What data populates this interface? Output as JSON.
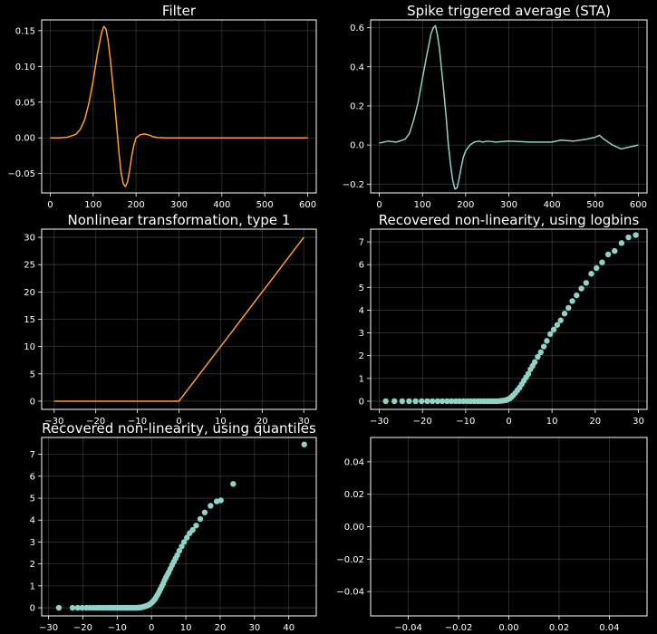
{
  "chart_data": [
    {
      "id": "filter",
      "type": "line",
      "title": "Filter",
      "color": "#ff9f25",
      "xlim": [
        -20,
        620
      ],
      "ylim": [
        -0.077,
        0.165
      ],
      "xticks": [
        0,
        100,
        200,
        300,
        400,
        500,
        600
      ],
      "yticks": [
        -0.05,
        0.0,
        0.05,
        0.1,
        0.15
      ],
      "ytick_labels": [
        "−0.05",
        "0.00",
        "0.05",
        "0.10",
        "0.15"
      ],
      "grid": true,
      "series": [
        {
          "x": [
            0,
            20,
            40,
            60,
            70,
            80,
            90,
            100,
            110,
            120,
            125,
            130,
            135,
            140,
            150,
            155,
            160,
            165,
            170,
            175,
            180,
            185,
            190,
            195,
            200,
            210,
            220,
            230,
            240,
            250,
            270,
            300,
            350,
            400,
            450,
            500,
            550,
            600
          ],
          "y": [
            0,
            0,
            0.001,
            0.005,
            0.012,
            0.025,
            0.048,
            0.08,
            0.118,
            0.148,
            0.156,
            0.152,
            0.135,
            0.11,
            0.05,
            0.015,
            -0.02,
            -0.048,
            -0.064,
            -0.068,
            -0.062,
            -0.045,
            -0.025,
            -0.01,
            0.0,
            0.0045,
            0.0055,
            0.004,
            0.0015,
            0.0005,
            0,
            0,
            0,
            0,
            0,
            0,
            0,
            0
          ]
        }
      ]
    },
    {
      "id": "sta",
      "type": "line",
      "title": "Spike triggered average (STA)",
      "color": "#8dd3c7",
      "xlim": [
        -20,
        620
      ],
      "ylim": [
        -0.245,
        0.64
      ],
      "xticks": [
        0,
        100,
        200,
        300,
        400,
        500,
        600
      ],
      "yticks": [
        -0.2,
        0.0,
        0.2,
        0.4,
        0.6
      ],
      "ytick_labels": [
        "−0.2",
        "0.0",
        "0.2",
        "0.4",
        "0.6"
      ],
      "grid": true,
      "series": [
        {
          "x": [
            0,
            20,
            40,
            60,
            70,
            80,
            90,
            100,
            110,
            120,
            125,
            130,
            135,
            140,
            150,
            155,
            160,
            165,
            170,
            175,
            180,
            185,
            190,
            195,
            200,
            210,
            220,
            230,
            240,
            250,
            270,
            300,
            350,
            400,
            420,
            450,
            480,
            500,
            510,
            520,
            540,
            560,
            580,
            600
          ],
          "y": [
            0.01,
            0.02,
            0.015,
            0.03,
            0.06,
            0.13,
            0.22,
            0.34,
            0.46,
            0.57,
            0.6,
            0.61,
            0.56,
            0.48,
            0.26,
            0.14,
            0.0,
            -0.1,
            -0.18,
            -0.225,
            -0.22,
            -0.17,
            -0.11,
            -0.06,
            -0.03,
            0.0,
            0.015,
            0.02,
            0.015,
            0.02,
            0.015,
            0.02,
            0.015,
            0.015,
            0.025,
            0.02,
            0.03,
            0.04,
            0.05,
            0.03,
            0.0,
            -0.02,
            -0.01,
            0.0
          ]
        }
      ]
    },
    {
      "id": "nonlinear",
      "type": "line",
      "title": "Nonlinear transformation, type 1",
      "color": "#ff9f25",
      "xlim": [
        -33,
        33
      ],
      "ylim": [
        -1.5,
        31.5
      ],
      "xticks": [
        -30,
        -20,
        -10,
        0,
        10,
        20,
        30
      ],
      "xtick_labels": [
        "−30",
        "−20",
        "−10",
        "0",
        "10",
        "20",
        "30"
      ],
      "yticks": [
        0,
        5,
        10,
        15,
        20,
        25,
        30
      ],
      "grid": true,
      "series": [
        {
          "x": [
            -30,
            0,
            30
          ],
          "y": [
            0,
            0,
            30
          ]
        }
      ]
    },
    {
      "id": "logbins",
      "type": "scatter",
      "title": "Recovered non-linearity, using logbins",
      "color": "#8dd3c7",
      "xlim": [
        -32,
        32
      ],
      "ylim": [
        -0.36,
        7.56
      ],
      "xticks": [
        -30,
        -20,
        -10,
        0,
        10,
        20,
        30
      ],
      "xtick_labels": [
        "−30",
        "−20",
        "−10",
        "0",
        "10",
        "20",
        "30"
      ],
      "yticks": [
        0,
        1,
        2,
        3,
        4,
        5,
        6,
        7
      ],
      "grid": true,
      "series": [
        {
          "x": [
            -28.5,
            -26.5,
            -24.7,
            -23.1,
            -21.6,
            -20.2,
            -18.9,
            -17.7,
            -16.5,
            -15.4,
            -14.3,
            -13.3,
            -12.3,
            -11.4,
            -10.5,
            -9.6,
            -8.8,
            -8.0,
            -7.2,
            -6.5,
            -5.8,
            -5.1,
            -4.5,
            -3.9,
            -3.3,
            -2.7,
            -2.1,
            -1.6,
            -1.1,
            -0.6,
            -0.2,
            0.2,
            0.6,
            1.0,
            1.5,
            2.0,
            2.5,
            3.0,
            3.5,
            4.0,
            4.5,
            5.0,
            5.5,
            6.0,
            6.7,
            7.4,
            8.1,
            8.8,
            9.6,
            10.4,
            11.2,
            12.0,
            12.9,
            13.8,
            14.7,
            15.7,
            16.8,
            17.9,
            19.1,
            20.3,
            21.6,
            23.0,
            24.5,
            26.1,
            27.7,
            29.4
          ],
          "y": [
            0,
            0,
            0,
            0,
            0,
            0,
            0,
            0,
            0,
            0,
            0,
            0,
            0,
            0,
            0,
            0,
            0,
            0,
            0,
            0,
            0,
            0,
            0,
            0,
            0,
            0,
            0.01,
            0.02,
            0.03,
            0.05,
            0.08,
            0.12,
            0.18,
            0.26,
            0.36,
            0.48,
            0.6,
            0.75,
            0.9,
            1.05,
            1.2,
            1.4,
            1.55,
            1.72,
            1.95,
            2.15,
            2.4,
            2.65,
            2.95,
            3.15,
            3.35,
            3.55,
            3.85,
            4.1,
            4.4,
            4.65,
            4.95,
            5.2,
            5.6,
            5.85,
            6.1,
            6.45,
            6.6,
            6.95,
            7.2,
            7.3
          ]
        }
      ]
    },
    {
      "id": "quantiles",
      "type": "scatter",
      "title": "Recovered non-linearity, using quantiles",
      "color": "#8dd3c7",
      "xlim": [
        -32,
        48
      ],
      "ylim": [
        -0.37,
        7.77
      ],
      "xticks": [
        -30,
        -20,
        -10,
        0,
        10,
        20,
        30,
        40
      ],
      "xtick_labels": [
        "−30",
        "−20",
        "−10",
        "0",
        "10",
        "20",
        "30",
        "40"
      ],
      "yticks": [
        0,
        1,
        2,
        3,
        4,
        5,
        6,
        7
      ],
      "grid": true,
      "series": [
        {
          "x": [
            -27.0,
            -23.0,
            -21.5,
            -20.2,
            -19.0,
            -18.0,
            -17.0,
            -16.1,
            -15.3,
            -14.5,
            -13.8,
            -13.1,
            -12.4,
            -11.8,
            -11.2,
            -10.6,
            -10.0,
            -9.5,
            -9.0,
            -8.5,
            -8.0,
            -7.5,
            -7.0,
            -6.6,
            -6.2,
            -5.8,
            -5.4,
            -5.0,
            -4.6,
            -4.2,
            -3.8,
            -3.4,
            -3.0,
            -2.6,
            -2.2,
            -1.8,
            -1.4,
            -1.0,
            -0.6,
            -0.2,
            0.2,
            0.6,
            1.0,
            1.4,
            1.8,
            2.2,
            2.6,
            3.0,
            3.4,
            3.8,
            4.2,
            4.6,
            5.0,
            5.5,
            6.0,
            6.5,
            7.0,
            7.5,
            8.1,
            8.8,
            9.5,
            10.3,
            11.1,
            12.0,
            13.0,
            14.2,
            15.5,
            17.2,
            19.0,
            20.2,
            23.8,
            44.5
          ],
          "y": [
            0,
            0,
            0,
            0,
            0,
            0,
            0,
            0,
            0,
            0,
            0,
            0,
            0,
            0,
            0,
            0,
            0,
            0,
            0,
            0,
            0,
            0,
            0,
            0,
            0,
            0,
            0,
            0,
            0,
            0,
            0.01,
            0.01,
            0.02,
            0.03,
            0.05,
            0.07,
            0.09,
            0.12,
            0.15,
            0.2,
            0.25,
            0.32,
            0.4,
            0.5,
            0.6,
            0.72,
            0.85,
            0.98,
            1.1,
            1.25,
            1.38,
            1.5,
            1.62,
            1.78,
            1.95,
            2.1,
            2.25,
            2.4,
            2.6,
            2.8,
            3.0,
            3.2,
            3.4,
            3.55,
            3.75,
            4.05,
            4.35,
            4.65,
            4.85,
            4.9,
            5.65,
            7.45
          ]
        }
      ]
    },
    {
      "id": "empty",
      "type": "scatter",
      "title": "",
      "color": "#8dd3c7",
      "xlim": [
        -0.055,
        0.055
      ],
      "ylim": [
        -0.055,
        0.055
      ],
      "xticks": [
        -0.04,
        -0.02,
        0.0,
        0.02,
        0.04
      ],
      "xtick_labels": [
        "−0.04",
        "−0.02",
        "0.00",
        "0.02",
        "0.04"
      ],
      "yticks": [
        -0.04,
        -0.02,
        0.0,
        0.02,
        0.04
      ],
      "ytick_labels": [
        "−0.04",
        "−0.02",
        "0.00",
        "0.02",
        "0.04"
      ],
      "grid": true,
      "series": []
    }
  ]
}
